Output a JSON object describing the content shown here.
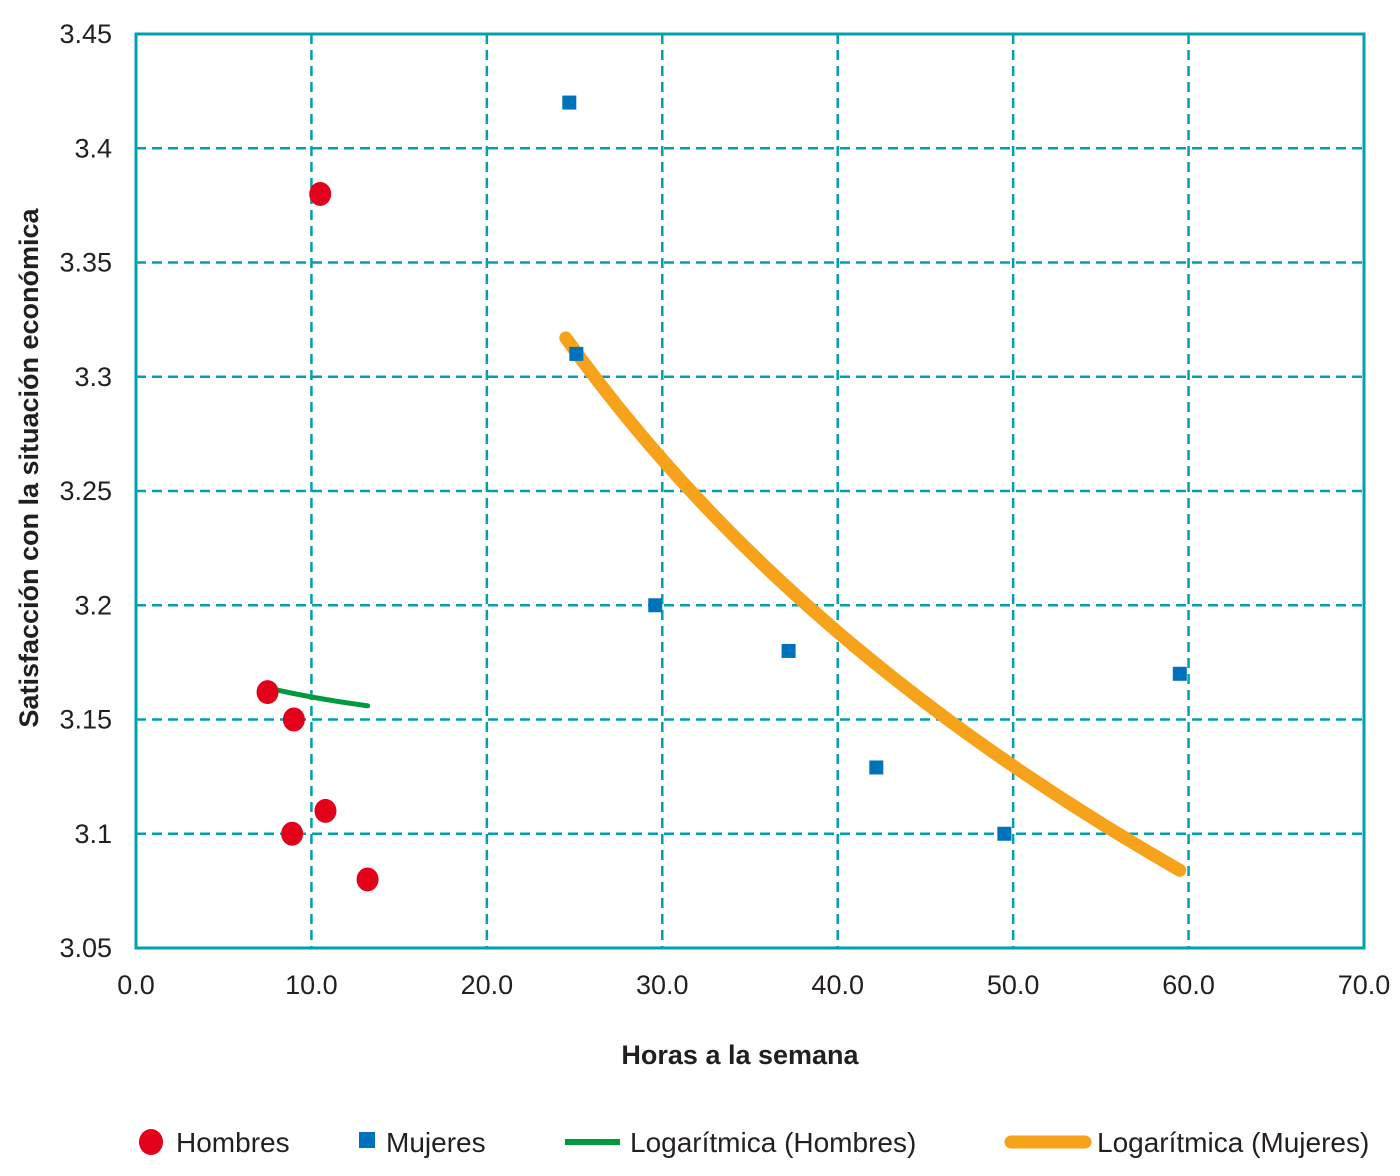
{
  "chart_data": {
    "type": "scatter",
    "xlabel": "Horas a la semana",
    "ylabel": "Satisfacción con la situación económica",
    "xlim": [
      0,
      70
    ],
    "ylim": [
      3.05,
      3.45
    ],
    "x_ticks": [
      0,
      10,
      20,
      30,
      40,
      50,
      60,
      70
    ],
    "x_tick_labels": [
      "0.0",
      "10.0",
      "20.0",
      "30.0",
      "40.0",
      "50.0",
      "60.0",
      "70.0"
    ],
    "y_ticks": [
      3.05,
      3.1,
      3.15,
      3.2,
      3.25,
      3.3,
      3.35,
      3.4,
      3.45
    ],
    "y_tick_labels": [
      "3.05",
      "3.1",
      "3.15",
      "3.2",
      "3.25",
      "3.3",
      "3.35",
      "3.4",
      "3.45"
    ],
    "grid": true,
    "legend_position": "bottom",
    "series": [
      {
        "name": "Hombres",
        "marker": "circle",
        "color": "#e2001a",
        "points": [
          [
            10.5,
            3.38
          ],
          [
            7.5,
            3.162
          ],
          [
            9.0,
            3.15
          ],
          [
            10.8,
            3.11
          ],
          [
            8.9,
            3.1
          ],
          [
            13.2,
            3.08
          ]
        ]
      },
      {
        "name": "Mujeres",
        "marker": "square",
        "color": "#0072bc",
        "points": [
          [
            24.7,
            3.42
          ],
          [
            25.1,
            3.31
          ],
          [
            29.6,
            3.2
          ],
          [
            37.2,
            3.18
          ],
          [
            42.2,
            3.129
          ],
          [
            49.5,
            3.1
          ],
          [
            59.5,
            3.17
          ]
        ]
      },
      {
        "name": "Logarítmica (Hombres)",
        "type": "line",
        "color": "#009a3e",
        "x_range": [
          8.0,
          13.2
        ],
        "y_start": 3.163,
        "y_end": 3.156
      },
      {
        "name": "Logarítmica (Mujeres)",
        "type": "line",
        "color": "#f7a21b",
        "x_range": [
          24.5,
          59.5
        ],
        "y_start": 3.317,
        "y_end": 3.084
      }
    ]
  }
}
